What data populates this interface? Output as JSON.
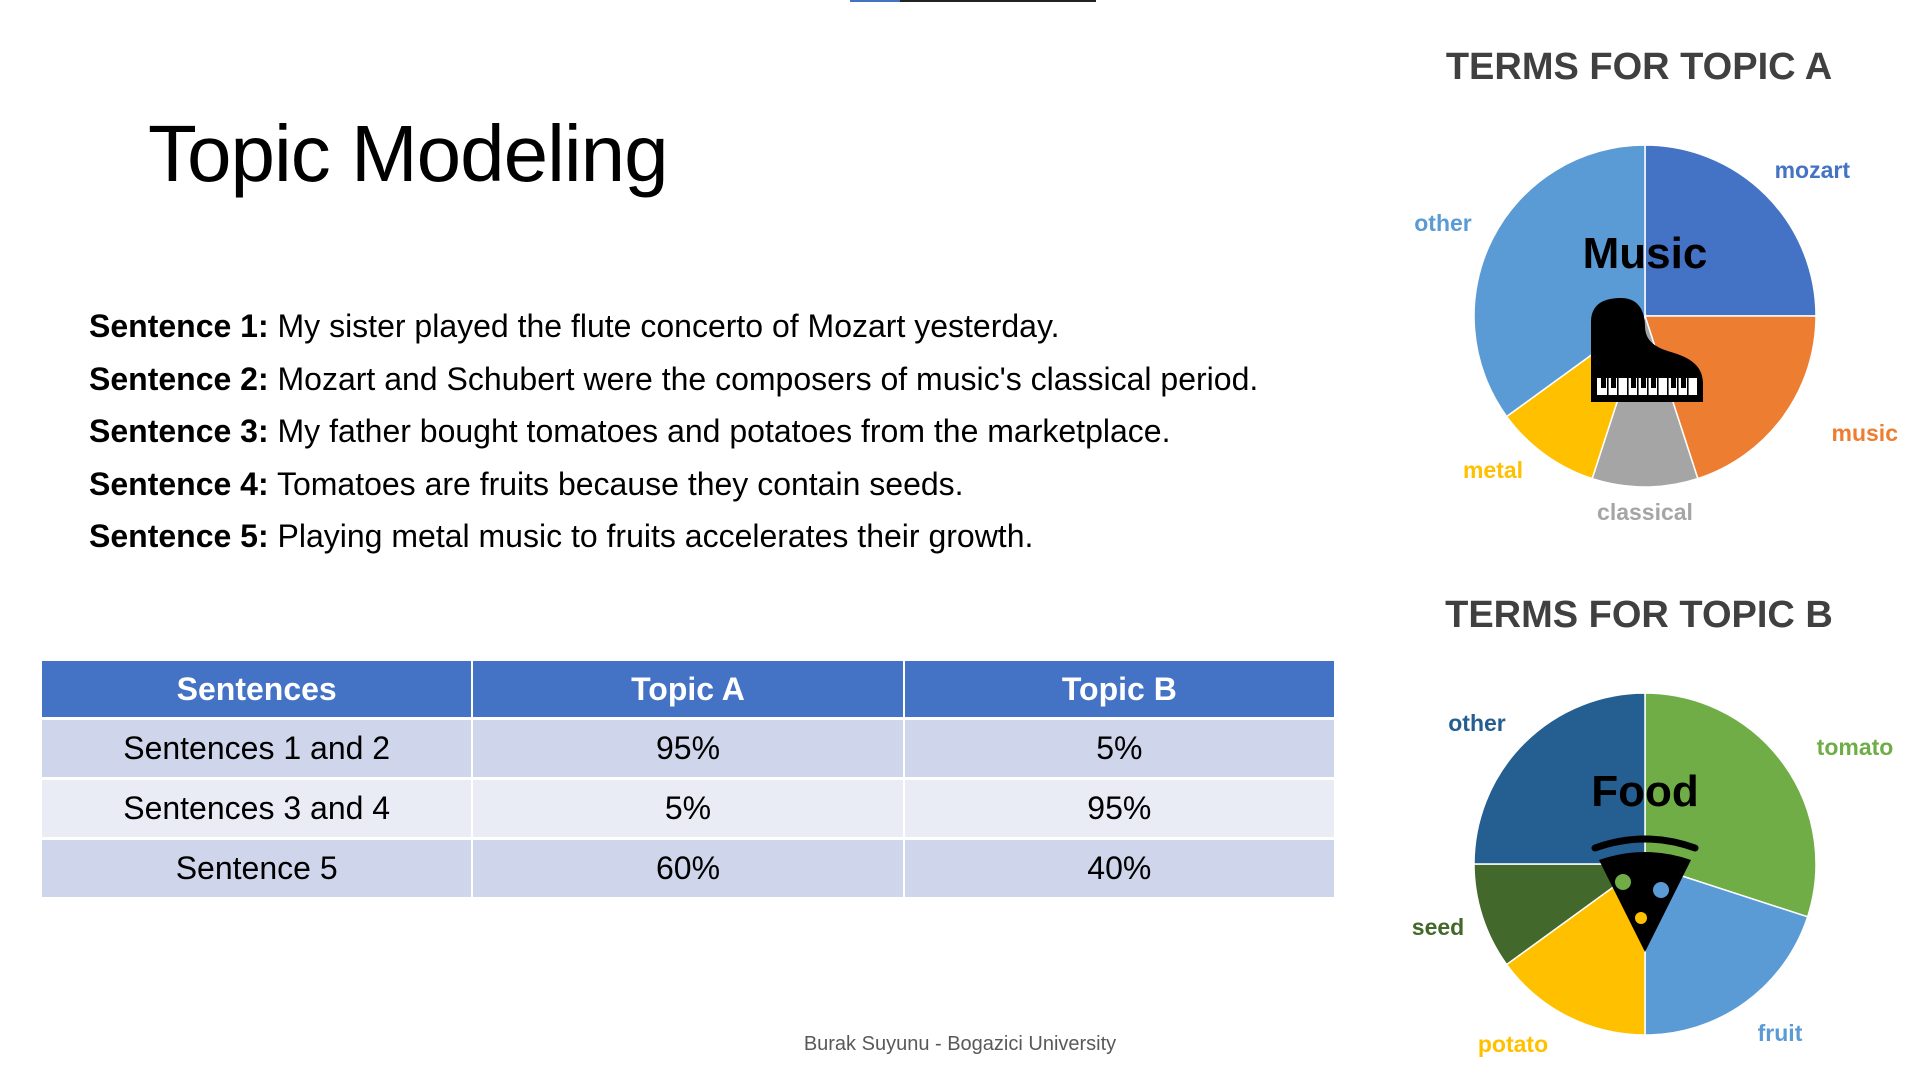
{
  "slide": {
    "title": "Topic Modeling",
    "footer": "Burak Suyunu - Bogazici University"
  },
  "sentences": [
    {
      "label": "Sentence 1:",
      "text": "My sister played the flute concerto of Mozart yesterday."
    },
    {
      "label": "Sentence 2:",
      "text": "Mozart and Schubert were the composers of music's classical period."
    },
    {
      "label": "Sentence 3:",
      "text": "My father bought tomatoes and potatoes from the marketplace."
    },
    {
      "label": "Sentence 4:",
      "text": "Tomatoes are fruits because they contain seeds."
    },
    {
      "label": "Sentence 5:",
      "text": "Playing metal music to fruits accelerates their growth."
    }
  ],
  "chart_data": [
    {
      "type": "table",
      "columns": [
        "Sentences",
        "Topic A",
        "Topic B"
      ],
      "rows": [
        [
          "Sentences 1 and 2",
          "95%",
          "5%"
        ],
        [
          "Sentences 3 and 4",
          "5%",
          "95%"
        ],
        [
          "Sentence 5",
          "60%",
          "40%"
        ]
      ]
    },
    {
      "type": "pie",
      "title": "TERMS FOR TOPIC A",
      "center_label": "Music",
      "center_icon": "piano-icon",
      "slices": [
        {
          "label": "mozart",
          "value": 25,
          "color": "#4472c4"
        },
        {
          "label": "music",
          "value": 20,
          "color": "#ed7d31"
        },
        {
          "label": "classical",
          "value": 10,
          "color": "#a5a5a5"
        },
        {
          "label": "metal",
          "value": 10,
          "color": "#ffc000"
        },
        {
          "label": "other",
          "value": 35,
          "color": "#5b9bd5"
        }
      ]
    },
    {
      "type": "pie",
      "title": "TERMS FOR TOPIC B",
      "center_label": "Food",
      "center_icon": "pizza-slice-icon",
      "slices": [
        {
          "label": "tomato",
          "value": 30,
          "color": "#70ad47"
        },
        {
          "label": "fruit",
          "value": 20,
          "color": "#5b9bd5"
        },
        {
          "label": "potato",
          "value": 15,
          "color": "#ffc000"
        },
        {
          "label": "seed",
          "value": 10,
          "color": "#43682b"
        },
        {
          "label": "other",
          "value": 25,
          "color": "#255e91"
        }
      ]
    }
  ]
}
